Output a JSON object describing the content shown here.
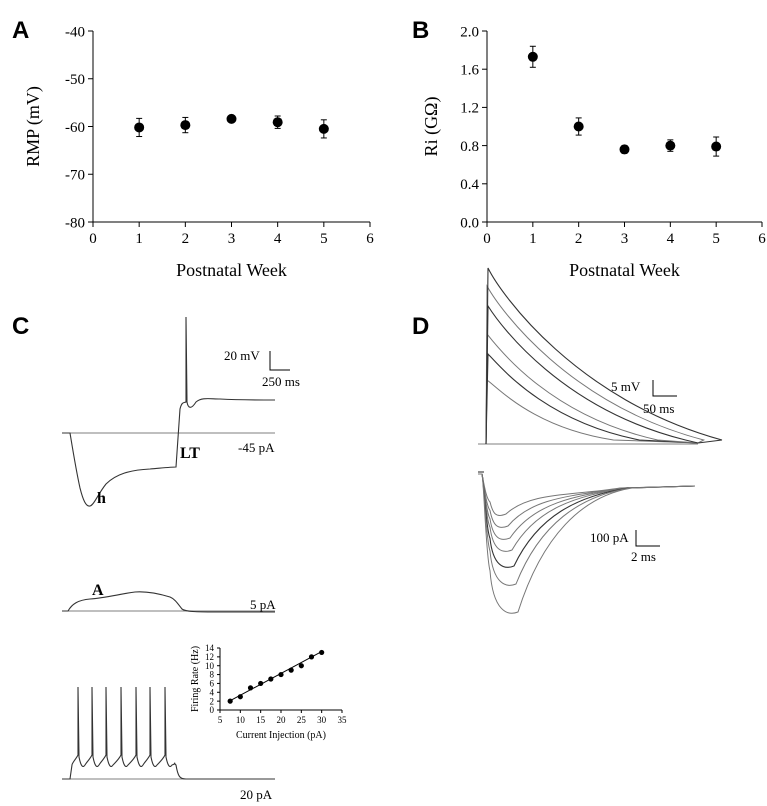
{
  "panels": {
    "a": {
      "letter": "A"
    },
    "b": {
      "letter": "B"
    },
    "c": {
      "letter": "C",
      "scale_top": {
        "v": "20 mV",
        "t": "250 ms"
      },
      "labels": {
        "h": "h",
        "lt": "LT",
        "a": "A"
      },
      "currents": {
        "hyper": "-45 pA",
        "small": "5 pA",
        "step": "20 pA"
      }
    },
    "d": {
      "letter": "D",
      "scale_top": {
        "v": "5 mV",
        "t": "50 ms"
      },
      "scale_bottom": {
        "i": "100 pA",
        "t": "2 ms"
      }
    }
  },
  "chart_data": [
    {
      "id": "A",
      "type": "scatter",
      "xlabel": "Postnatal Week",
      "ylabel": "RMP (mV)",
      "xlim": [
        0,
        6
      ],
      "ylim": [
        -80,
        -40
      ],
      "xticks": [
        "0",
        "1",
        "2",
        "3",
        "4",
        "5",
        "6"
      ],
      "yticks": [
        "-80",
        "-70",
        "-60",
        "-50",
        "-40"
      ],
      "x": [
        1,
        2,
        3,
        4,
        5
      ],
      "y": [
        -60.2,
        -59.7,
        -58.4,
        -59.1,
        -60.5
      ],
      "err": [
        1.9,
        1.6,
        0.7,
        1.3,
        1.9
      ]
    },
    {
      "id": "B",
      "type": "scatter",
      "xlabel": "Postnatal Week",
      "ylabel": "Ri (GΩ)",
      "xlim": [
        0,
        6
      ],
      "ylim": [
        0,
        2
      ],
      "xticks": [
        "0",
        "1",
        "2",
        "3",
        "4",
        "5",
        "6"
      ],
      "yticks": [
        "0.0",
        "0.4",
        "0.8",
        "1.2",
        "1.6",
        "2.0"
      ],
      "x": [
        1,
        2,
        3,
        4,
        5
      ],
      "y": [
        1.73,
        1.0,
        0.76,
        0.8,
        0.79
      ],
      "err": [
        0.11,
        0.09,
        0.04,
        0.06,
        0.1
      ]
    },
    {
      "id": "C-inset",
      "type": "scatter",
      "xlabel": "Current Injection (pA)",
      "ylabel": "Firing Rate (Hz)",
      "xlim": [
        5,
        35
      ],
      "ylim": [
        0,
        14
      ],
      "xticks": [
        "5",
        "10",
        "15",
        "20",
        "25",
        "30",
        "35"
      ],
      "yticks": [
        "0",
        "2",
        "4",
        "6",
        "8",
        "10",
        "12",
        "14"
      ],
      "x": [
        7.5,
        10,
        12.5,
        15,
        17.5,
        20,
        22.5,
        25,
        27.5,
        30
      ],
      "y": [
        2,
        3,
        5,
        6,
        7,
        8,
        9,
        10,
        12,
        13
      ],
      "fit": {
        "x": [
          7.5,
          30
        ],
        "y": [
          2.1,
          13.2
        ]
      }
    }
  ]
}
